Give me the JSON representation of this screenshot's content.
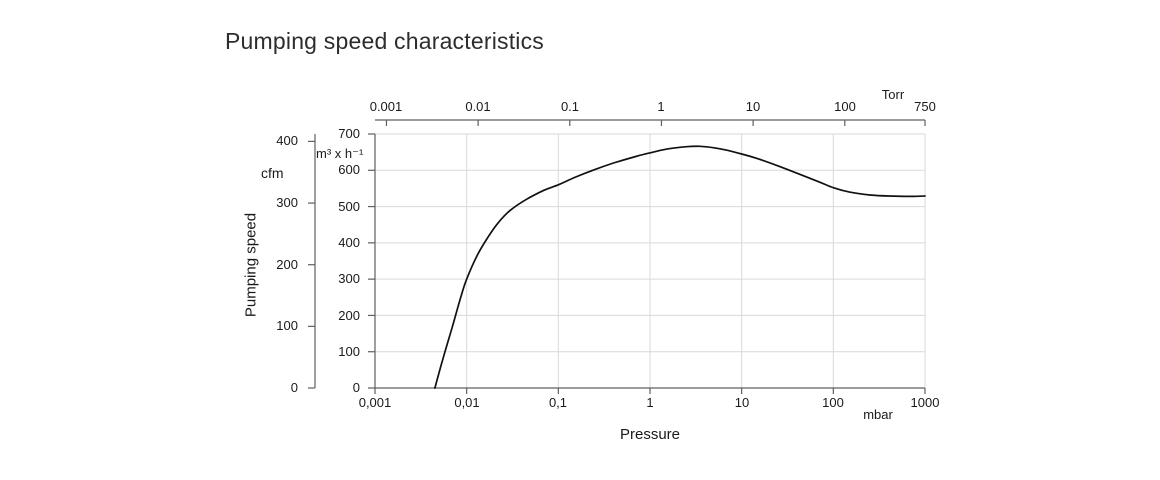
{
  "title": "Pumping speed characteristics",
  "colors": {
    "curve": "#111111",
    "grid": "#d9d9d9",
    "axis": "#5f5f5f",
    "text": "#1a1a1a",
    "background": "#ffffff"
  },
  "chart_data": {
    "type": "line",
    "title": "Pumping speed characteristics",
    "grid": true,
    "x_axis_bottom": {
      "label": "Pressure",
      "unit": "mbar",
      "scale": "log",
      "range": [
        0.001,
        1000
      ],
      "tick_values": [
        0.001,
        0.01,
        0.1,
        1,
        10,
        100,
        1000
      ],
      "ticks": [
        "0,001",
        "0,01",
        "0,1",
        "1",
        "10",
        "100",
        "1000"
      ]
    },
    "x_axis_top": {
      "unit": "Torr",
      "scale": "log",
      "range": [
        0.00075,
        750
      ],
      "tick_values": [
        0.001,
        0.01,
        0.1,
        1,
        10,
        100,
        750
      ],
      "ticks": [
        "0.001",
        "0.01",
        "0.1",
        "1",
        "10",
        "100",
        "750"
      ],
      "mbar_per_torr": 1.3333333
    },
    "y_axis_inner": {
      "unit": "m³ x h⁻¹",
      "range": [
        0,
        700
      ],
      "tick_values": [
        700,
        600,
        500,
        400,
        300,
        200,
        100,
        0
      ],
      "ticks": [
        "700",
        "600",
        "500",
        "400",
        "300",
        "200",
        "100",
        "0"
      ]
    },
    "y_axis_outer": {
      "label": "Pumping speed",
      "unit": "cfm",
      "range": [
        0,
        400
      ],
      "tick_values": [
        400,
        300,
        200,
        100,
        0
      ],
      "ticks": [
        "400",
        "300",
        "200",
        "100",
        "0"
      ],
      "m3h_per_cfm": 1.699
    },
    "series": [
      {
        "name": "pumping-speed-curve",
        "x_unit": "mbar",
        "y_unit": "m3/h",
        "points": [
          [
            0.0045,
            0
          ],
          [
            0.0055,
            80
          ],
          [
            0.007,
            170
          ],
          [
            0.0085,
            245
          ],
          [
            0.01,
            300
          ],
          [
            0.013,
            365
          ],
          [
            0.017,
            415
          ],
          [
            0.022,
            455
          ],
          [
            0.03,
            490
          ],
          [
            0.045,
            520
          ],
          [
            0.07,
            545
          ],
          [
            0.1,
            560
          ],
          [
            0.15,
            580
          ],
          [
            0.25,
            602
          ],
          [
            0.4,
            620
          ],
          [
            0.7,
            638
          ],
          [
            1,
            648
          ],
          [
            1.5,
            658
          ],
          [
            2.5,
            665
          ],
          [
            3.5,
            666
          ],
          [
            5,
            662
          ],
          [
            7,
            655
          ],
          [
            10,
            645
          ],
          [
            15,
            632
          ],
          [
            25,
            612
          ],
          [
            40,
            592
          ],
          [
            70,
            568
          ],
          [
            100,
            552
          ],
          [
            150,
            540
          ],
          [
            250,
            532
          ],
          [
            400,
            529
          ],
          [
            700,
            528
          ],
          [
            1000,
            529
          ]
        ]
      }
    ]
  }
}
